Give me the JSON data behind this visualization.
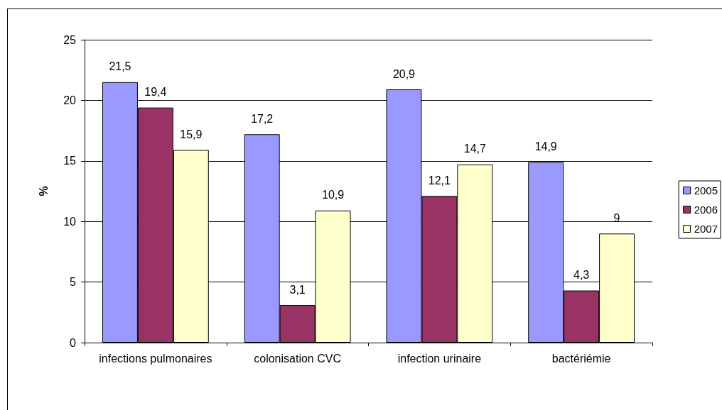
{
  "chart_data": {
    "type": "bar",
    "ylabel": "%",
    "categories": [
      "infections pulmonaires",
      "colonisation CVC",
      "infection urinaire",
      "bactériémie"
    ],
    "series": [
      {
        "name": "2005",
        "color": "#9999ff",
        "values": [
          21.5,
          17.2,
          20.9,
          14.9
        ],
        "value_labels": [
          "21,5",
          "17,2",
          "20,9",
          "14,9"
        ]
      },
      {
        "name": "2006",
        "color": "#993366",
        "values": [
          19.4,
          3.1,
          12.1,
          4.3
        ],
        "value_labels": [
          "19,4",
          "3,1",
          "12,1",
          "4,3"
        ]
      },
      {
        "name": "2007",
        "color": "#ffffcc",
        "values": [
          15.9,
          10.9,
          14.7,
          9
        ],
        "value_labels": [
          "15,9",
          "10,9",
          "14,7",
          "9"
        ]
      }
    ],
    "ylim": [
      0,
      25
    ],
    "yticks": [
      0,
      5,
      10,
      15,
      20,
      25
    ],
    "grid": "y",
    "legend": "right"
  }
}
